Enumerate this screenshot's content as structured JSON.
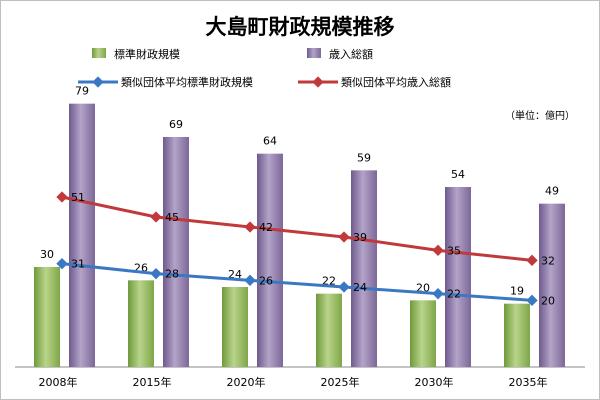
{
  "chart_data": {
    "type": "bar",
    "title": "大島町財政規模推移",
    "unit_note": "（単位：億円）",
    "categories": [
      "2008年",
      "2015年",
      "2020年",
      "2025年",
      "2030年",
      "2035年"
    ],
    "bar_series": [
      {
        "name": "標準財政規模",
        "values": [
          30,
          26,
          24,
          22,
          20,
          19
        ],
        "color": "#8fb35a"
      },
      {
        "name": "歳入総額",
        "values": [
          79,
          69,
          64,
          59,
          54,
          49
        ],
        "color": "#8e7aa8"
      }
    ],
    "line_series": [
      {
        "name": "類似団体平均標準財政規模",
        "values": [
          31,
          28,
          26,
          24,
          22,
          20
        ],
        "color": "#3a78c4"
      },
      {
        "name": "類似団体平均歳入総額",
        "values": [
          51,
          45,
          42,
          39,
          35,
          32
        ],
        "color": "#c0393b"
      }
    ],
    "ylim": [
      0,
      90
    ],
    "grid": false,
    "legend": "top"
  }
}
